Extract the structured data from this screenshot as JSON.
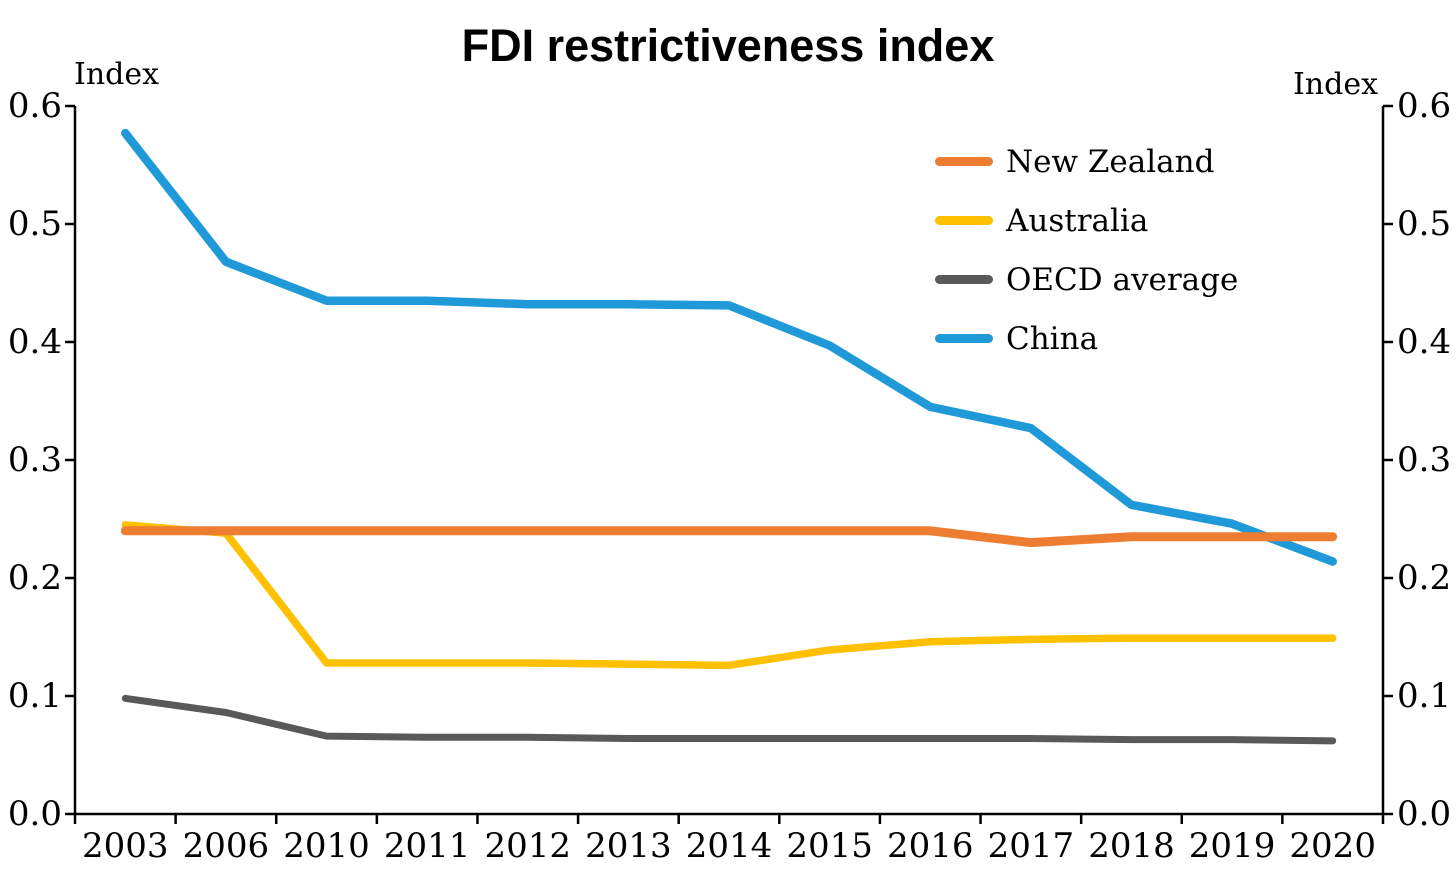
{
  "chart_data": {
    "type": "line",
    "title": "FDI restrictiveness index",
    "left_axis_label": "Index",
    "right_axis_label": "Index",
    "categories": [
      "2003",
      "2006",
      "2010",
      "2011",
      "2012",
      "2013",
      "2014",
      "2015",
      "2016",
      "2017",
      "2018",
      "2019",
      "2020"
    ],
    "y_ticks": [
      "0.0",
      "0.1",
      "0.2",
      "0.3",
      "0.4",
      "0.5",
      "0.6"
    ],
    "ylim": [
      0,
      0.6
    ],
    "grid": false,
    "legend_position": "inside-top-right",
    "axis_color": "#000000",
    "background_color": "#ffffff",
    "series": [
      {
        "name": "New Zealand",
        "color": "#ED7D31",
        "values": [
          0.24,
          0.24,
          0.24,
          0.24,
          0.24,
          0.24,
          0.24,
          0.24,
          0.24,
          0.23,
          0.235,
          0.235,
          0.235
        ]
      },
      {
        "name": "Australia",
        "color": "#FFC000",
        "values": [
          0.245,
          0.238,
          0.128,
          0.128,
          0.128,
          0.127,
          0.126,
          0.139,
          0.146,
          0.148,
          0.149,
          0.149,
          0.149
        ]
      },
      {
        "name": "OECD average",
        "color": "#595959",
        "values": [
          0.098,
          0.086,
          0.066,
          0.065,
          0.065,
          0.064,
          0.064,
          0.064,
          0.064,
          0.064,
          0.063,
          0.063,
          0.062
        ]
      },
      {
        "name": "China",
        "color": "#2099D8",
        "values": [
          0.577,
          0.468,
          0.435,
          0.435,
          0.432,
          0.432,
          0.431,
          0.397,
          0.345,
          0.327,
          0.262,
          0.246,
          0.214
        ]
      }
    ]
  }
}
